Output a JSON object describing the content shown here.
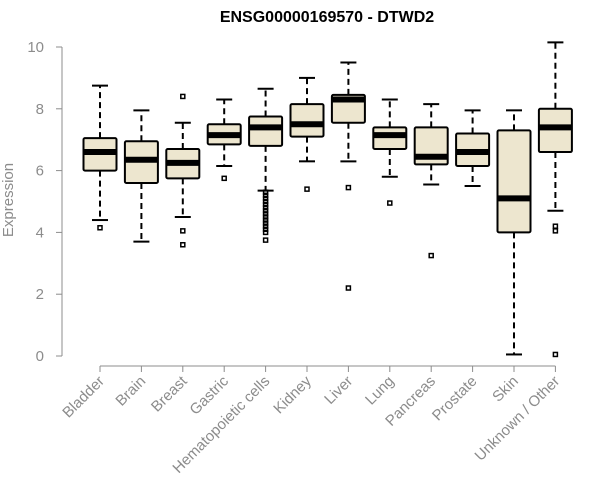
{
  "chart_data": {
    "type": "boxplot",
    "title": "ENSG00000169570 - DTWD2",
    "xlabel": "",
    "ylabel": "Expression",
    "ylim": [
      0,
      10
    ],
    "yticks": [
      0,
      2,
      4,
      6,
      8,
      10
    ],
    "grid": false,
    "box_color": "#ede6cf",
    "categories": [
      "Bladder",
      "Brain",
      "Breast",
      "Gastric",
      "Hematopoietic cells",
      "Kidney",
      "Liver",
      "Lung",
      "Pancreas",
      "Prostate",
      "Skin",
      "Unknown / Other"
    ],
    "boxes": [
      {
        "name": "Bladder",
        "min": 4.4,
        "q1": 6.0,
        "median": 6.6,
        "q3": 7.05,
        "max": 8.75,
        "outliers": [
          4.15
        ]
      },
      {
        "name": "Brain",
        "min": 3.7,
        "q1": 5.6,
        "median": 6.35,
        "q3": 6.95,
        "max": 7.95,
        "outliers": []
      },
      {
        "name": "Breast",
        "min": 4.5,
        "q1": 5.75,
        "median": 6.25,
        "q3": 6.7,
        "max": 7.55,
        "outliers": [
          8.4,
          4.05,
          3.6
        ]
      },
      {
        "name": "Gastric",
        "min": 6.15,
        "q1": 6.85,
        "median": 7.15,
        "q3": 7.5,
        "max": 8.3,
        "outliers": [
          5.75
        ]
      },
      {
        "name": "Hematopoietic cells",
        "min": 5.35,
        "q1": 6.8,
        "median": 7.4,
        "q3": 7.75,
        "max": 8.65,
        "outliers": [
          5.3,
          5.2,
          5.1,
          5.0,
          4.9,
          4.8,
          4.7,
          4.6,
          4.5,
          4.4,
          4.3,
          4.2,
          4.1,
          4.0,
          3.75
        ]
      },
      {
        "name": "Kidney",
        "min": 6.3,
        "q1": 7.1,
        "median": 7.5,
        "q3": 8.15,
        "max": 9.0,
        "outliers": [
          5.4
        ]
      },
      {
        "name": "Liver",
        "min": 6.3,
        "q1": 7.55,
        "median": 8.3,
        "q3": 8.45,
        "max": 9.5,
        "outliers": [
          5.45,
          2.2
        ]
      },
      {
        "name": "Lung",
        "min": 5.8,
        "q1": 6.7,
        "median": 7.15,
        "q3": 7.4,
        "max": 8.3,
        "outliers": [
          4.95
        ]
      },
      {
        "name": "Pancreas",
        "min": 5.55,
        "q1": 6.2,
        "median": 6.45,
        "q3": 7.4,
        "max": 8.15,
        "outliers": [
          3.25
        ]
      },
      {
        "name": "Prostate",
        "min": 5.5,
        "q1": 6.15,
        "median": 6.6,
        "q3": 7.2,
        "max": 7.95,
        "outliers": []
      },
      {
        "name": "Skin",
        "min": 0.05,
        "q1": 4.0,
        "median": 5.1,
        "q3": 7.3,
        "max": 7.95,
        "outliers": []
      },
      {
        "name": "Unknown / Other",
        "min": 4.7,
        "q1": 6.6,
        "median": 7.4,
        "q3": 8.0,
        "max": 10.15,
        "outliers": [
          4.2,
          4.05,
          0.05
        ]
      }
    ]
  }
}
